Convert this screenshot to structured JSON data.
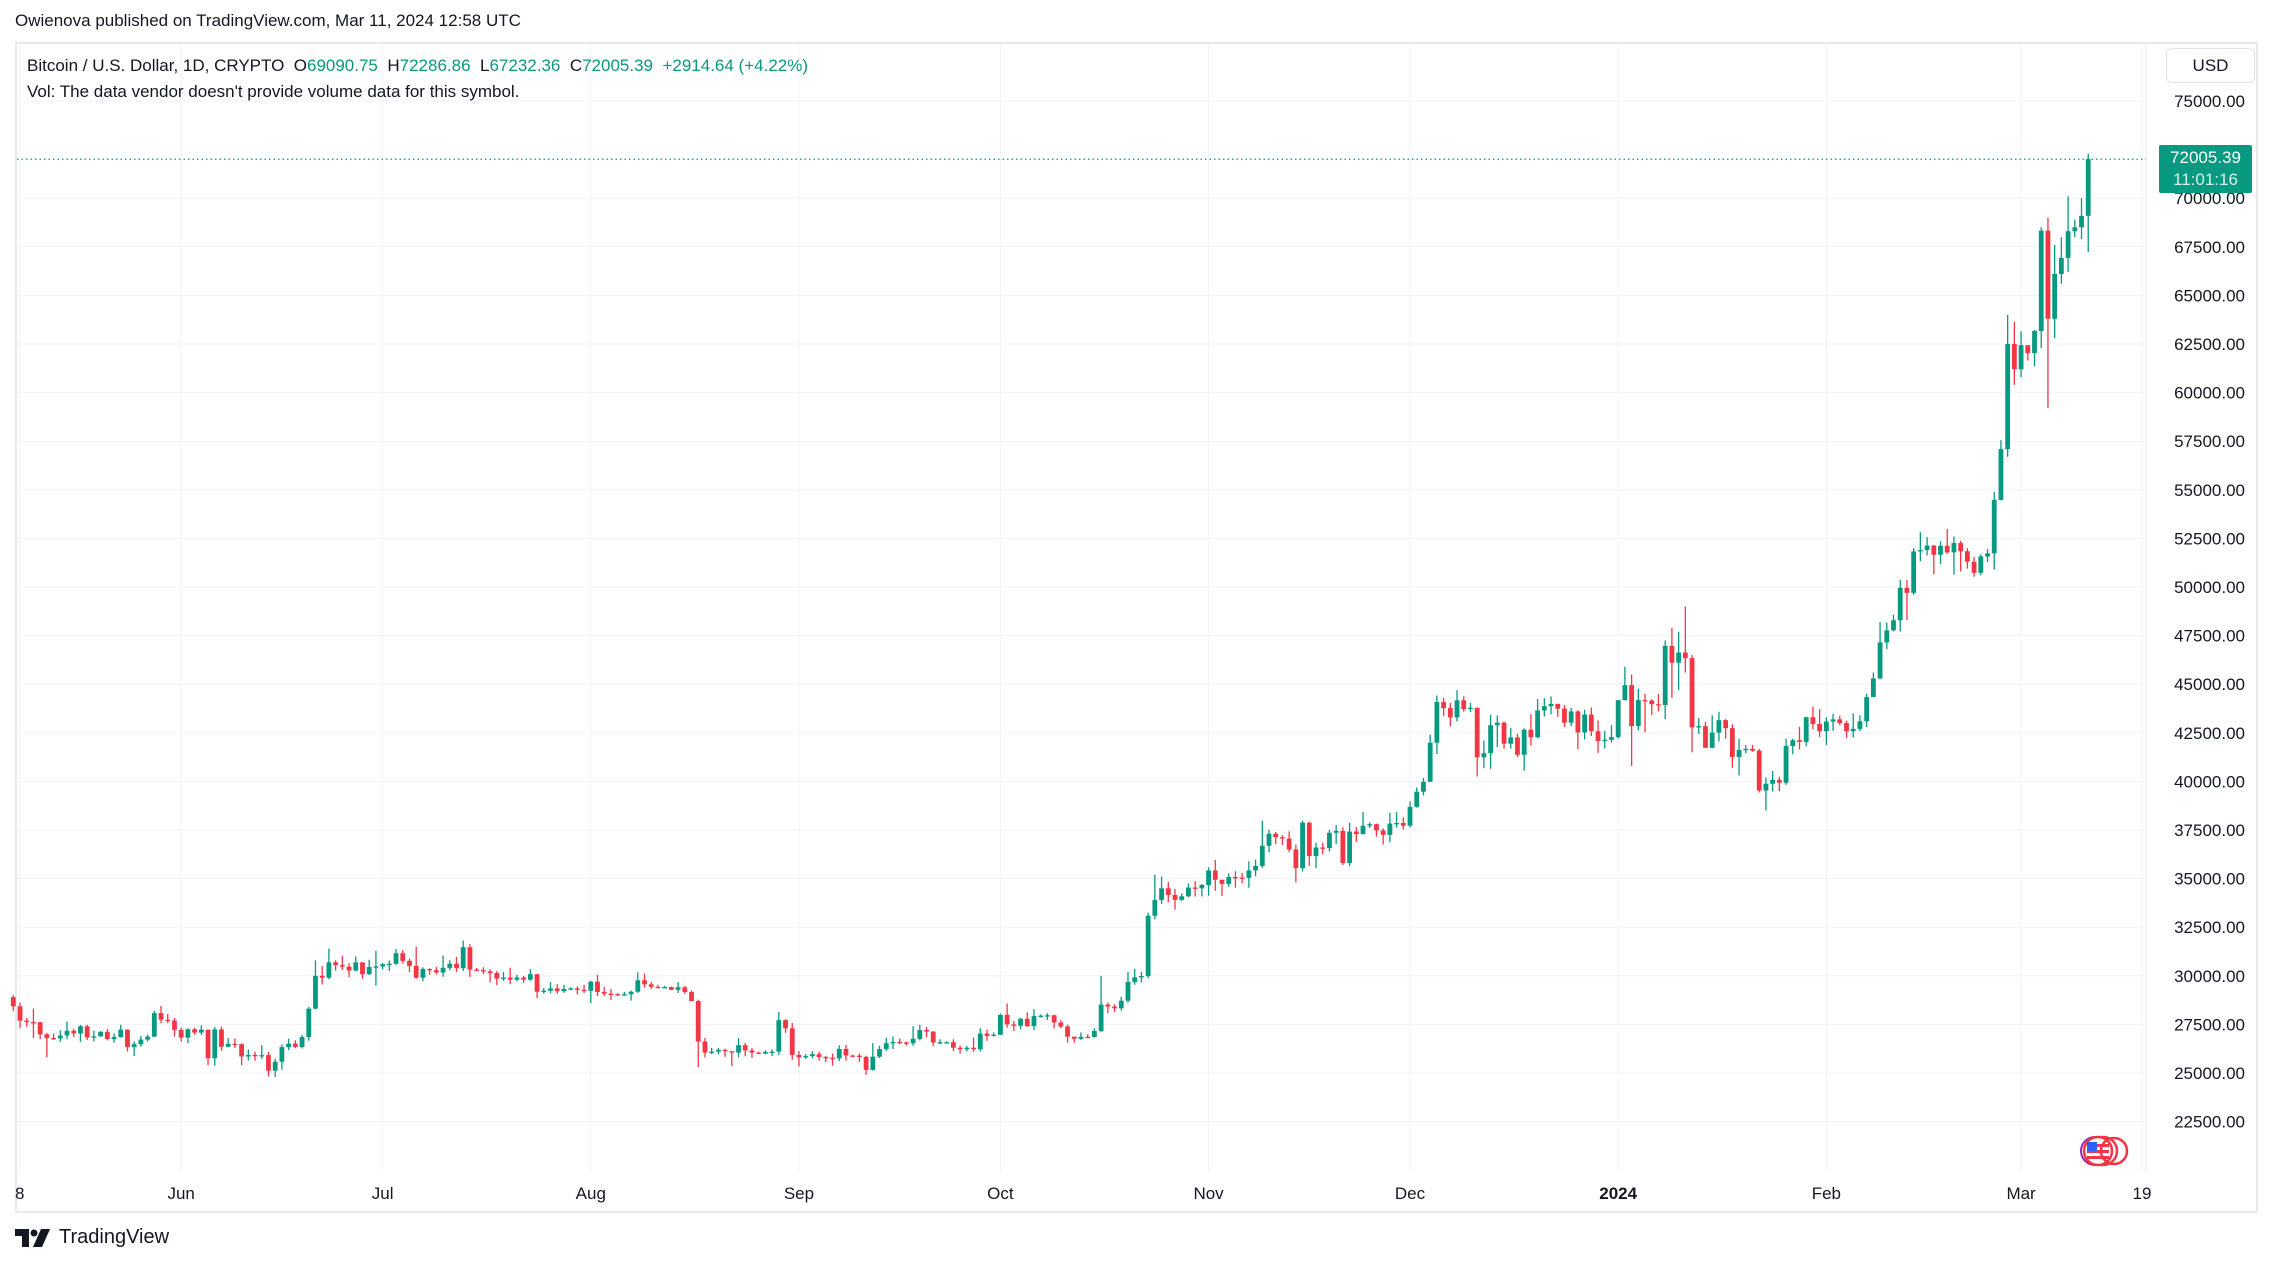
{
  "publish_line": "Owienova published on TradingView.com, Mar 11, 2024 12:58 UTC",
  "legend": {
    "symbol": "Bitcoin / U.S. Dollar, 1D, CRYPTO",
    "o_label": "O",
    "o": "69090.75",
    "h_label": "H",
    "h": "72286.86",
    "l_label": "L",
    "l": "67232.36",
    "c_label": "C",
    "c": "72005.39",
    "change": "+2914.64 (+4.22%)",
    "volume_note": "Vol: The data vendor doesn't provide volume data for this symbol."
  },
  "currency_button": "USD",
  "last_price": {
    "price": "72005.39",
    "countdown": "11:01:16"
  },
  "branding": "TradingView",
  "colors": {
    "up": "#089981",
    "down": "#f23645",
    "grid": "#f0f3fa"
  },
  "icons": [
    "tradingview-logo-icon",
    "us-flag-economic-events-icon"
  ],
  "chart_data": {
    "type": "candlestick",
    "interval": "1D",
    "start_date": "2023-05-07",
    "start_open": 28900,
    "ylim": [
      21000,
      77000
    ],
    "grid": true,
    "y_ticks": [
      22500,
      25000,
      27500,
      30000,
      32500,
      35000,
      37500,
      40000,
      42500,
      45000,
      47500,
      50000,
      52500,
      55000,
      57500,
      60000,
      62500,
      65000,
      67500,
      70000,
      75000
    ],
    "y_tick_labels": [
      "22500.00",
      "25000.00",
      "27500.00",
      "30000.00",
      "32500.00",
      "35000.00",
      "37500.00",
      "40000.00",
      "42500.00",
      "45000.00",
      "47500.00",
      "50000.00",
      "52500.00",
      "55000.00",
      "57500.00",
      "60000.00",
      "62500.00",
      "65000.00",
      "67500.00",
      "70000.00",
      "75000.00"
    ],
    "x_ticks": [
      {
        "label": "8",
        "date": "2023-05-08"
      },
      {
        "label": "Jun",
        "date": "2023-06-01"
      },
      {
        "label": "Jul",
        "date": "2023-07-01"
      },
      {
        "label": "Aug",
        "date": "2023-08-01"
      },
      {
        "label": "Sep",
        "date": "2023-09-01"
      },
      {
        "label": "Oct",
        "date": "2023-10-01"
      },
      {
        "label": "Nov",
        "date": "2023-11-01"
      },
      {
        "label": "Dec",
        "date": "2023-12-01"
      },
      {
        "label": "2024",
        "date": "2024-01-01"
      },
      {
        "label": "Feb",
        "date": "2024-02-01"
      },
      {
        "label": "Mar",
        "date": "2024-03-01"
      },
      {
        "label": "19",
        "date": "2024-03-19"
      }
    ],
    "close": [
      28430,
      27690,
      27620,
      27610,
      26990,
      26800,
      26780,
      26930,
      27170,
      27030,
      27400,
      26830,
      26890,
      27120,
      26750,
      26850,
      27230,
      26330,
      26480,
      26720,
      26870,
      28080,
      27740,
      27700,
      27220,
      26820,
      27250,
      27080,
      27230,
      25760,
      27240,
      26350,
      26500,
      26480,
      25850,
      25930,
      25900,
      25920,
      25120,
      25580,
      26330,
      26510,
      26340,
      26850,
      28310,
      30000,
      29900,
      30690,
      30550,
      30470,
      30270,
      30690,
      30080,
      30450,
      30480,
      30590,
      30620,
      31160,
      30770,
      30510,
      29900,
      30350,
      30290,
      30170,
      30410,
      30620,
      30390,
      31470,
      30320,
      30290,
      30230,
      30140,
      29860,
      29910,
      29800,
      29910,
      29800,
      30080,
      29180,
      29230,
      29350,
      29210,
      29320,
      29350,
      29280,
      29230,
      29700,
      29170,
      29080,
      29050,
      29040,
      29050,
      29180,
      29770,
      29560,
      29430,
      29400,
      29420,
      29280,
      29410,
      29170,
      28700,
      26620,
      26050,
      26100,
      26190,
      26120,
      26050,
      26430,
      26160,
      26050,
      26000,
      26080,
      26100,
      27720,
      27300,
      25930,
      25800,
      25870,
      25970,
      25820,
      25780,
      25750,
      26240,
      25900,
      25890,
      25830,
      25160,
      25840,
      26230,
      26530,
      26600,
      26570,
      26530,
      26760,
      27210,
      27130,
      26570,
      26580,
      26580,
      26300,
      26220,
      26300,
      26220,
      27030,
      26910,
      26970,
      27990,
      27500,
      27430,
      27790,
      27410,
      27930,
      27950,
      27970,
      27600,
      27390,
      26870,
      26760,
      26860,
      26850,
      27160,
      28520,
      28420,
      28330,
      28720,
      29680,
      29920,
      29990,
      33090,
      33900,
      34500,
      34160,
      33910,
      34090,
      34540,
      34500,
      34670,
      35420,
      34940,
      34730,
      35080,
      35050,
      35040,
      35420,
      35650,
      36690,
      37310,
      37130,
      37060,
      36500,
      35540,
      37880,
      36160,
      36600,
      36570,
      37360,
      37450,
      35800,
      37420,
      37290,
      37720,
      37800,
      37480,
      37250,
      37830,
      37860,
      37720,
      38690,
      39470,
      39980,
      41990,
      44080,
      43770,
      43290,
      44170,
      43720,
      43790,
      41240,
      41450,
      42890,
      43020,
      41940,
      42260,
      41370,
      42660,
      42270,
      43650,
      43870,
      43990,
      43740,
      43020,
      43600,
      42520,
      43440,
      42580,
      42070,
      42140,
      42280,
      44180,
      44950,
      42850,
      44180,
      44160,
      43970,
      43930,
      46970,
      46110,
      46630,
      46340,
      42780,
      42840,
      41730,
      42510,
      43150,
      42740,
      41260,
      41620,
      41670,
      41580,
      39530,
      39880,
      40080,
      39930,
      41820,
      42120,
      42030,
      43300,
      42950,
      42580,
      43080,
      43190,
      43000,
      42580,
      42700,
      43090,
      44340,
      45300,
      47150,
      47770,
      48290,
      49960,
      49700,
      51830,
      51900,
      52130,
      51660,
      52120,
      51780,
      52260,
      51840,
      51300,
      50730,
      51570,
      51730,
      54480,
      57090,
      62500,
      61200,
      62440,
      62030,
      63170,
      68330,
      63800,
      66100,
      66930,
      68300,
      68500,
      69090.75,
      72005.39
    ],
    "high": [
      29000,
      28630,
      27830,
      28320,
      27630,
      27050,
      27030,
      27200,
      27650,
      27270,
      27470,
      27480,
      27180,
      27150,
      27260,
      27040,
      27480,
      27250,
      26630,
      26910,
      26980,
      28200,
      28450,
      28040,
      27830,
      27330,
      27300,
      27330,
      27450,
      27230,
      27360,
      27380,
      26800,
      26780,
      26530,
      26220,
      26090,
      26430,
      26090,
      25740,
      26470,
      26770,
      26680,
      26950,
      28400,
      30800,
      30500,
      31400,
      30800,
      31030,
      30650,
      31000,
      30700,
      30830,
      31280,
      30660,
      30790,
      31380,
      31330,
      30880,
      31500,
      30440,
      30390,
      30450,
      31040,
      30800,
      30970,
      31820,
      31630,
      30400,
      30440,
      30340,
      30240,
      30190,
      30410,
      30050,
      29990,
      30340,
      30100,
      29370,
      29680,
      29570,
      29530,
      29410,
      29450,
      29530,
      29740,
      30040,
      29420,
      29320,
      29110,
      29170,
      29240,
      30180,
      30110,
      29680,
      29540,
      29470,
      29450,
      29680,
      29480,
      29250,
      28770,
      26800,
      26290,
      26290,
      26250,
      26130,
      26800,
      26560,
      26290,
      26100,
      26170,
      26220,
      28140,
      27760,
      27570,
      26130,
      25970,
      26120,
      26090,
      25880,
      26000,
      26430,
      26440,
      25940,
      26000,
      25890,
      26540,
      26400,
      26820,
      26880,
      26770,
      26620,
      27410,
      27480,
      27370,
      27150,
      26730,
      26640,
      26730,
      26420,
      26390,
      26820,
      27300,
      27230,
      27090,
      28060,
      28580,
      27670,
      27830,
      28120,
      28280,
      28010,
      28080,
      28000,
      27720,
      27490,
      26820,
      27090,
      26990,
      27300,
      30000,
      28620,
      28540,
      28920,
      30200,
      30360,
      30200,
      33240,
      35200,
      35100,
      34830,
      34460,
      34240,
      34750,
      34870,
      34720,
      35580,
      35960,
      34920,
      35270,
      35380,
      35290,
      35890,
      35980,
      37970,
      37520,
      37400,
      37230,
      37430,
      36760,
      37990,
      37930,
      36850,
      36850,
      37510,
      37750,
      37640,
      37880,
      37650,
      38420,
      37890,
      37830,
      37580,
      38390,
      38420,
      38150,
      38970,
      39690,
      40180,
      42410,
      44420,
      44300,
      44030,
      44700,
      44380,
      44040,
      43790,
      42100,
      43430,
      43390,
      43090,
      42740,
      42450,
      42730,
      43450,
      44240,
      44280,
      44370,
      43980,
      43930,
      43790,
      43660,
      43680,
      43800,
      43130,
      42600,
      42890,
      44190,
      45900,
      45500,
      44770,
      44500,
      44230,
      44500,
      47250,
      47900,
      47700,
      49000,
      46500,
      43260,
      43070,
      43400,
      43580,
      43200,
      42940,
      42200,
      41870,
      41880,
      41670,
      40200,
      40530,
      40240,
      42200,
      42200,
      42800,
      43330,
      43840,
      43720,
      43290,
      43480,
      43380,
      43120,
      43500,
      43400,
      44510,
      45600,
      48200,
      48170,
      48580,
      50360,
      50370,
      52000,
      52820,
      52570,
      52160,
      52350,
      52990,
      52600,
      52370,
      52000,
      51540,
      51680,
      51950,
      54900,
      57550,
      64000,
      63650,
      63150,
      62430,
      63230,
      68500,
      69000,
      67600,
      67990,
      70100,
      68900,
      70000,
      72286.86
    ],
    "low": [
      28180,
      27300,
      27380,
      26800,
      26750,
      25800,
      26700,
      26600,
      26730,
      26850,
      26600,
      26700,
      26630,
      26860,
      26680,
      26560,
      26820,
      26100,
      25880,
      26350,
      26620,
      26860,
      27560,
      27570,
      26870,
      26610,
      26540,
      26970,
      26960,
      25410,
      25380,
      26140,
      26330,
      26290,
      25400,
      25650,
      25630,
      25730,
      24830,
      24790,
      25170,
      26180,
      26280,
      26260,
      26660,
      28270,
      29550,
      29820,
      30270,
      30300,
      29920,
      30230,
      29850,
      30040,
      29500,
      30330,
      30250,
      30560,
      30630,
      30200,
      29850,
      29720,
      30050,
      30070,
      29950,
      30290,
      30200,
      30250,
      29940,
      30250,
      30080,
      29660,
      29530,
      29740,
      29570,
      29720,
      29640,
      29750,
      28860,
      29080,
      29100,
      29080,
      29130,
      29260,
      29050,
      29120,
      28600,
      28950,
      28960,
      28750,
      28970,
      28970,
      28720,
      29120,
      29390,
      29330,
      29350,
      29360,
      29260,
      29120,
      29070,
      28700,
      25300,
      25800,
      25970,
      25970,
      25830,
      25360,
      25800,
      25860,
      25780,
      25980,
      25960,
      25870,
      25920,
      27070,
      25680,
      25330,
      25730,
      25760,
      25640,
      25570,
      25380,
      25610,
      25630,
      25810,
      25570,
      24900,
      25130,
      25770,
      26130,
      26230,
      26480,
      26410,
      26400,
      26680,
      26830,
      26380,
      26480,
      26520,
      26130,
      25990,
      26110,
      26090,
      26110,
      26660,
      26880,
      26950,
      27330,
      27160,
      27240,
      27370,
      27200,
      27860,
      27730,
      27300,
      27300,
      26560,
      26560,
      26700,
      26810,
      26830,
      27110,
      28080,
      28140,
      28200,
      28620,
      29540,
      29660,
      29880,
      32900,
      33700,
      33780,
      33400,
      33850,
      34030,
      34080,
      34080,
      34120,
      34370,
      34110,
      34580,
      34530,
      34760,
      34530,
      35120,
      35550,
      36350,
      36770,
      36730,
      36350,
      34800,
      35370,
      35660,
      35530,
      36250,
      36390,
      36780,
      35700,
      35650,
      36890,
      37270,
      37600,
      37160,
      36750,
      36880,
      37620,
      37520,
      37630,
      38650,
      39280,
      39960,
      41410,
      43370,
      42830,
      43090,
      43590,
      43560,
      40250,
      40680,
      40650,
      41770,
      41680,
      41690,
      41260,
      40550,
      41840,
      42220,
      43340,
      43450,
      43320,
      42800,
      42840,
      41660,
      42160,
      42330,
      41470,
      41690,
      41990,
      42200,
      44160,
      40800,
      42630,
      42530,
      43420,
      43600,
      43200,
      44300,
      44700,
      45600,
      41500,
      42440,
      41720,
      41700,
      42050,
      42200,
      40700,
      40300,
      41450,
      41520,
      39430,
      38500,
      39480,
      39500,
      39820,
      41400,
      41640,
      41800,
      42690,
      42290,
      41880,
      42600,
      42890,
      42230,
      42260,
      42580,
      42790,
      44330,
      45250,
      46800,
      47720,
      47710,
      48300,
      49600,
      51330,
      51620,
      50650,
      51170,
      51710,
      50640,
      50800,
      50950,
      50530,
      50600,
      51290,
      50900,
      54450,
      56700,
      60400,
      60800,
      61650,
      61350,
      62300,
      59200,
      62800,
      65600,
      66200,
      68000,
      67900,
      67232.36
    ]
  }
}
